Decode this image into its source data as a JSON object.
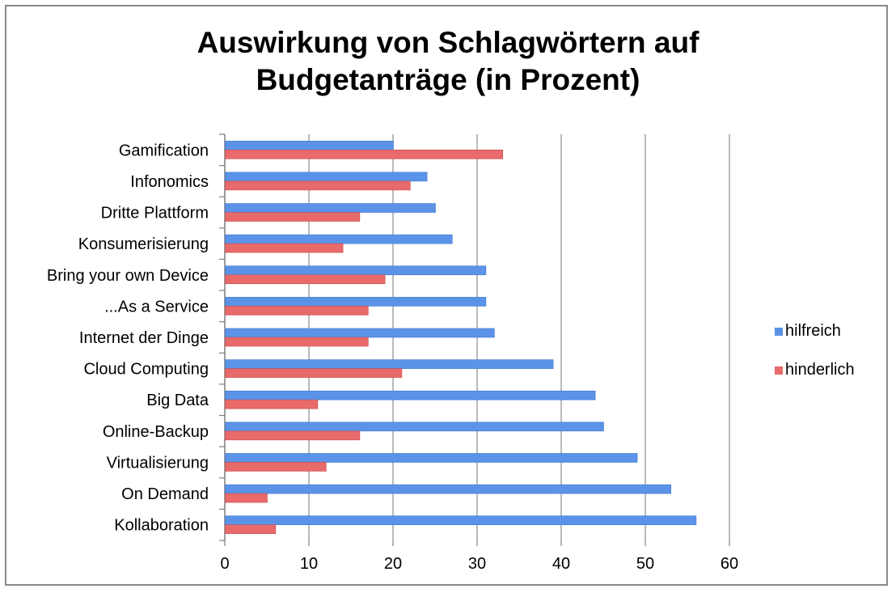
{
  "chart_data": {
    "type": "bar",
    "orientation": "horizontal",
    "title": "Auswirkung von Schlagwörtern auf Budgetanträge (in Prozent)",
    "title_lines": [
      "Auswirkung von Schlagwörtern auf",
      "Budgetanträge (in Prozent)"
    ],
    "categories": [
      "Gamification",
      "Infonomics",
      "Dritte Plattform",
      "Konsumerisierung",
      "Bring your own Device",
      "...As a Service",
      "Internet der Dinge",
      "Cloud Computing",
      "Big Data",
      "Online-Backup",
      "Virtualisierung",
      "On Demand",
      "Kollaboration"
    ],
    "series": [
      {
        "name": "hilfreich",
        "color": "#5b93e8",
        "values": [
          20,
          24,
          25,
          27,
          31,
          31,
          32,
          39,
          44,
          45,
          49,
          53,
          56
        ]
      },
      {
        "name": "hinderlich",
        "color": "#e86a6a",
        "values": [
          33,
          22,
          16,
          14,
          19,
          17,
          17,
          21,
          11,
          16,
          12,
          5,
          6
        ]
      }
    ],
    "xlim": [
      0,
      60
    ],
    "xticks": [
      0,
      10,
      20,
      30,
      40,
      50,
      60
    ],
    "xlabel": "",
    "ylabel": "",
    "grid": true,
    "legend_position": "right"
  }
}
